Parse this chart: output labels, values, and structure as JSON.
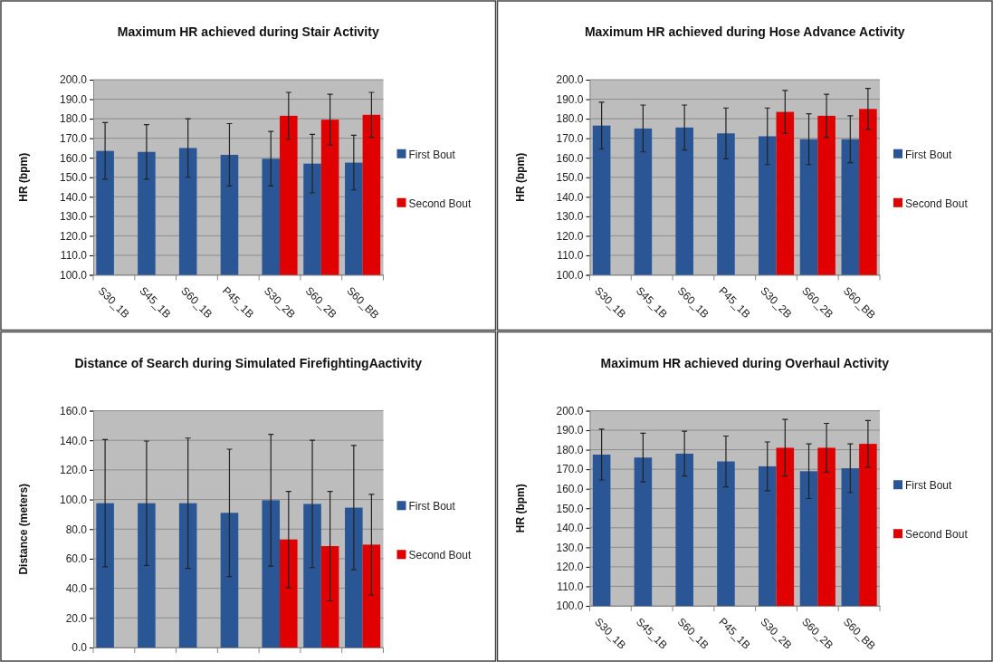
{
  "chart_data": [
    {
      "type": "bar",
      "title": "Maximum HR achieved during Stair Activity",
      "ylabel": "HR (bpm)",
      "categories": [
        "S30_1B",
        "S45_1B",
        "S60_1B",
        "P45_1B",
        "S30_2B",
        "S60_2B",
        "S60_BB"
      ],
      "ylim": [
        100,
        200
      ],
      "yticks": [
        {
          "value": 100,
          "label": "100.0"
        },
        {
          "value": 110,
          "label": "110.0"
        },
        {
          "value": 120,
          "label": "120.0"
        },
        {
          "value": 130,
          "label": "130.0"
        },
        {
          "value": 140,
          "label": "140.0"
        },
        {
          "value": 150,
          "label": "150.0"
        },
        {
          "value": 160,
          "label": "160.0"
        },
        {
          "value": 170,
          "label": "170.0"
        },
        {
          "value": 180,
          "label": "180.0"
        },
        {
          "value": 190,
          "label": "190.0"
        },
        {
          "value": 200,
          "label": "200.0"
        }
      ],
      "grid": "y",
      "legend": "right",
      "series": [
        {
          "name": "First Bout",
          "color": "#2a5696",
          "values": [
            163.5,
            163,
            165,
            161.5,
            159.5,
            157,
            157.5
          ],
          "errors": [
            14.5,
            14,
            15,
            16,
            14,
            15,
            14
          ]
        },
        {
          "name": "Second Bout",
          "color": "#e00000",
          "values": [
            null,
            null,
            null,
            null,
            181.5,
            179.5,
            182
          ],
          "errors": [
            null,
            null,
            null,
            null,
            12,
            13,
            11.5
          ]
        }
      ]
    },
    {
      "type": "bar",
      "title": "Maximum HR achieved during Hose Advance Activity",
      "ylabel": "HR (bpm)",
      "categories": [
        "S30_1B",
        "S45_1B",
        "S60_1B",
        "P45_1B",
        "S30_2B",
        "S60_2B",
        "S60_BB"
      ],
      "ylim": [
        100,
        200
      ],
      "yticks": [
        {
          "value": 100,
          "label": "100.0"
        },
        {
          "value": 110,
          "label": "110.0"
        },
        {
          "value": 120,
          "label": "120.0"
        },
        {
          "value": 130,
          "label": "130.0"
        },
        {
          "value": 140,
          "label": "140.0"
        },
        {
          "value": 150,
          "label": "150.0"
        },
        {
          "value": 160,
          "label": "160.0"
        },
        {
          "value": 170,
          "label": "170.0"
        },
        {
          "value": 180,
          "label": "180.0"
        },
        {
          "value": 190,
          "label": "190.0"
        },
        {
          "value": 200,
          "label": "200.0"
        }
      ],
      "grid": "y",
      "legend": "right",
      "series": [
        {
          "name": "First Bout",
          "color": "#2a5696",
          "values": [
            176.5,
            175,
            175.5,
            172.5,
            171,
            169.5,
            169.5
          ],
          "errors": [
            12,
            12,
            11.5,
            13,
            14.5,
            13,
            12
          ]
        },
        {
          "name": "Second Bout",
          "color": "#e00000",
          "values": [
            null,
            null,
            null,
            null,
            183.5,
            181.5,
            185
          ],
          "errors": [
            null,
            null,
            null,
            null,
            11,
            11,
            10.5
          ]
        }
      ]
    },
    {
      "type": "bar",
      "title": "Distance of Search during Simulated FirefightingAactivity",
      "ylabel": "Distance (meters)",
      "categories": [
        null,
        null,
        null,
        null,
        null,
        null,
        null
      ],
      "ylim": [
        0,
        160
      ],
      "yticks": [
        {
          "value": 0,
          "label": "0.0"
        },
        {
          "value": 20,
          "label": "20.0"
        },
        {
          "value": 40,
          "label": "40.0"
        },
        {
          "value": 60,
          "label": "60.0"
        },
        {
          "value": 80,
          "label": "80.0"
        },
        {
          "value": 100,
          "label": "100.0"
        },
        {
          "value": 120,
          "label": "120.0"
        },
        {
          "value": 140,
          "label": "140.0"
        },
        {
          "value": 160,
          "label": "160.0"
        }
      ],
      "grid": "y",
      "legend": "right",
      "tick_labels": "y",
      "series": [
        {
          "name": "First Bout",
          "color": "#2a5696",
          "values": [
            97.5,
            97.5,
            97.5,
            91,
            99.5,
            97,
            94.5
          ],
          "errors": [
            43,
            42,
            44,
            43,
            44.5,
            43,
            42
          ]
        },
        {
          "name": "Second Bout",
          "color": "#e00000",
          "values": [
            null,
            null,
            null,
            null,
            73,
            68.5,
            69.5
          ],
          "errors": [
            null,
            null,
            null,
            null,
            32.5,
            37,
            34
          ]
        }
      ]
    },
    {
      "type": "bar",
      "title": "Maximum HR achieved during Overhaul Activity",
      "ylabel": "HR (bpm)",
      "categories": [
        "S30_1B",
        "S45_1B",
        "S60_1B",
        "P45_1B",
        "S30_2B",
        "S60_2B",
        "S60_BB"
      ],
      "ylim": [
        100,
        200
      ],
      "yticks": [
        {
          "value": 100,
          "label": "100.0"
        },
        {
          "value": 110,
          "label": "110.0"
        },
        {
          "value": 120,
          "label": "120.0"
        },
        {
          "value": 130,
          "label": "130.0"
        },
        {
          "value": 140,
          "label": "140.0"
        },
        {
          "value": 150,
          "label": "150.0"
        },
        {
          "value": 160,
          "label": "160.0"
        },
        {
          "value": 170,
          "label": "170.0"
        },
        {
          "value": 180,
          "label": "180.0"
        },
        {
          "value": 190,
          "label": "190.0"
        },
        {
          "value": 200,
          "label": "200.0"
        }
      ],
      "grid": "y",
      "legend": "right",
      "series": [
        {
          "name": "First Bout",
          "color": "#2a5696",
          "values": [
            177.5,
            176,
            178,
            174,
            171.5,
            169,
            170.5
          ],
          "errors": [
            13,
            12.5,
            11.5,
            13,
            12.5,
            14,
            12.5
          ]
        },
        {
          "name": "Second Bout",
          "color": "#e00000",
          "values": [
            null,
            null,
            null,
            null,
            181,
            181,
            183
          ],
          "errors": [
            null,
            null,
            null,
            null,
            14.5,
            12.5,
            12
          ]
        }
      ]
    }
  ]
}
